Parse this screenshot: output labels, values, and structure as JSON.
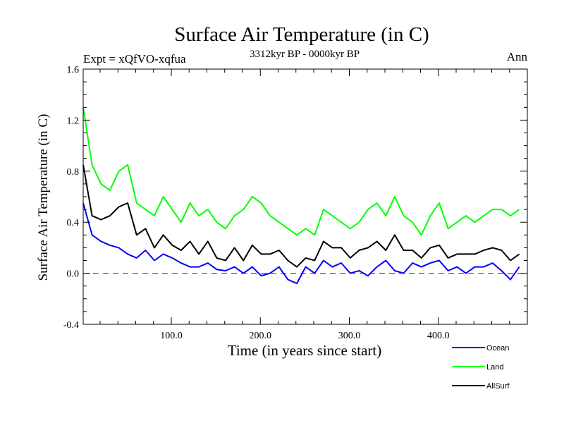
{
  "chart_data": {
    "type": "line",
    "title": "Surface Air Temperature (in C)",
    "subtitle_left": "Expt = xQfVO-xqfua",
    "subtitle_center": "3312kyr BP - 0000kyr BP",
    "subtitle_right": "Ann",
    "xlabel": "Time (in years since start)",
    "ylabel": "Surface Air Temperature (in C)",
    "xlim": [
      1,
      500
    ],
    "ylim": [
      -0.4,
      1.6
    ],
    "x_ticks": [
      100,
      200,
      300,
      400
    ],
    "x_tick_labels": [
      "100.0",
      "200.0",
      "300.0",
      "400.0"
    ],
    "y_ticks": [
      -0.4,
      0.0,
      0.4,
      0.8,
      1.2,
      1.6
    ],
    "y_tick_labels": [
      "-0.4",
      "0.0",
      "0.4",
      "0.8",
      "1.2",
      "1.6"
    ],
    "reference_line": 0.0,
    "legend_position": "bottom-right",
    "series": [
      {
        "name": "Ocean",
        "color": "#0000ff",
        "x_step": 10,
        "values": [
          0.55,
          0.3,
          0.25,
          0.22,
          0.2,
          0.15,
          0.12,
          0.18,
          0.1,
          0.15,
          0.12,
          0.08,
          0.05,
          0.05,
          0.08,
          0.03,
          0.02,
          0.05,
          0.0,
          0.05,
          -0.02,
          0.0,
          0.05,
          -0.05,
          -0.08,
          0.05,
          0.0,
          0.1,
          0.05,
          0.08,
          0.0,
          0.02,
          -0.02,
          0.05,
          0.1,
          0.02,
          0.0,
          0.08,
          0.05,
          0.08,
          0.1,
          0.02,
          0.05,
          0.0,
          0.05,
          0.05,
          0.08,
          0.02,
          -0.05,
          0.05
        ]
      },
      {
        "name": "Land",
        "color": "#00ff00",
        "x_step": 10,
        "values": [
          1.3,
          0.85,
          0.7,
          0.65,
          0.8,
          0.85,
          0.55,
          0.5,
          0.45,
          0.6,
          0.5,
          0.4,
          0.55,
          0.45,
          0.5,
          0.4,
          0.35,
          0.45,
          0.5,
          0.6,
          0.55,
          0.45,
          0.4,
          0.35,
          0.3,
          0.35,
          0.3,
          0.5,
          0.45,
          0.4,
          0.35,
          0.4,
          0.5,
          0.55,
          0.45,
          0.6,
          0.45,
          0.4,
          0.3,
          0.45,
          0.55,
          0.35,
          0.4,
          0.45,
          0.4,
          0.45,
          0.5,
          0.5,
          0.45,
          0.5
        ]
      },
      {
        "name": "AllSurf",
        "color": "#000000",
        "x_step": 10,
        "values": [
          0.85,
          0.45,
          0.42,
          0.45,
          0.52,
          0.55,
          0.3,
          0.35,
          0.2,
          0.3,
          0.22,
          0.18,
          0.25,
          0.15,
          0.25,
          0.12,
          0.1,
          0.2,
          0.1,
          0.22,
          0.15,
          0.15,
          0.18,
          0.1,
          0.05,
          0.12,
          0.1,
          0.25,
          0.2,
          0.2,
          0.12,
          0.18,
          0.2,
          0.25,
          0.18,
          0.3,
          0.18,
          0.18,
          0.12,
          0.2,
          0.22,
          0.12,
          0.15,
          0.15,
          0.15,
          0.18,
          0.2,
          0.18,
          0.1,
          0.15
        ]
      }
    ]
  }
}
